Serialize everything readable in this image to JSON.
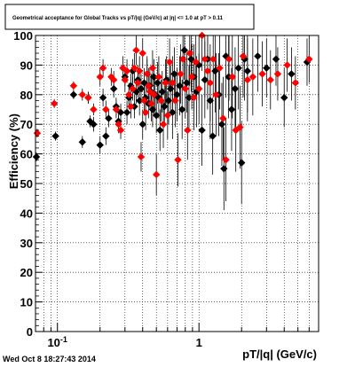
{
  "page": {
    "title": "Geometrical acceptance for Global Tracks vs pT/|q| (GeV/c) at |η| <= 1.0 at pT > 0.11",
    "footer": "Wed Oct  8 18:27:43 2014"
  },
  "chart_data": {
    "type": "scatter",
    "title": "Geometrical acceptance for Global Tracks vs pT/|q| (GeV/c) at |η| <= 1.0 at pT > 0.11",
    "xlabel": "pT/|q| (GeV/c)",
    "ylabel": "Efficiency (%)",
    "x_scale": "log",
    "xlim": [
      0.07,
      7.0
    ],
    "ylim": [
      0,
      100
    ],
    "x_ticks": [
      {
        "value": 0.1,
        "label": "10^-1"
      },
      {
        "value": 1,
        "label": "1"
      }
    ],
    "y_ticks": [
      0,
      10,
      20,
      30,
      40,
      50,
      60,
      70,
      80,
      90,
      100
    ],
    "grid": true,
    "marker": "diamond",
    "series": [
      {
        "color": "#000000",
        "points": [
          {
            "x": 0.071,
            "y": 59,
            "e": 1.5
          },
          {
            "x": 0.097,
            "y": 66,
            "e": 1.5
          },
          {
            "x": 0.13,
            "y": 80,
            "e": 1.5
          },
          {
            "x": 0.15,
            "y": 64,
            "e": 2
          },
          {
            "x": 0.165,
            "y": 79,
            "e": 2
          },
          {
            "x": 0.17,
            "y": 71,
            "e": 2
          },
          {
            "x": 0.18,
            "y": 70,
            "e": 2.5
          },
          {
            "x": 0.2,
            "y": 63,
            "e": 3
          },
          {
            "x": 0.21,
            "y": 79,
            "e": 3
          },
          {
            "x": 0.22,
            "y": 66,
            "e": 3
          },
          {
            "x": 0.23,
            "y": 72,
            "e": 3
          },
          {
            "x": 0.25,
            "y": 82,
            "e": 3
          },
          {
            "x": 0.26,
            "y": 76,
            "e": 3
          },
          {
            "x": 0.27,
            "y": 71,
            "e": 3
          },
          {
            "x": 0.28,
            "y": 74,
            "e": 3
          },
          {
            "x": 0.3,
            "y": 86,
            "e": 3
          },
          {
            "x": 0.31,
            "y": 74,
            "e": 4
          },
          {
            "x": 0.32,
            "y": 79,
            "e": 4
          },
          {
            "x": 0.33,
            "y": 83,
            "e": 4
          },
          {
            "x": 0.34,
            "y": 88,
            "e": 4
          },
          {
            "x": 0.35,
            "y": 76,
            "e": 4
          },
          {
            "x": 0.36,
            "y": 81,
            "e": 4
          },
          {
            "x": 0.37,
            "y": 85,
            "e": 5
          },
          {
            "x": 0.38,
            "y": 78,
            "e": 5
          },
          {
            "x": 0.39,
            "y": 82,
            "e": 5
          },
          {
            "x": 0.4,
            "y": 70,
            "e": 5
          },
          {
            "x": 0.41,
            "y": 84,
            "e": 5
          },
          {
            "x": 0.42,
            "y": 79,
            "e": 5
          },
          {
            "x": 0.43,
            "y": 87,
            "e": 5
          },
          {
            "x": 0.44,
            "y": 77,
            "e": 5
          },
          {
            "x": 0.45,
            "y": 83,
            "e": 6
          },
          {
            "x": 0.46,
            "y": 81,
            "e": 6
          },
          {
            "x": 0.47,
            "y": 75,
            "e": 6
          },
          {
            "x": 0.48,
            "y": 86,
            "e": 6
          },
          {
            "x": 0.49,
            "y": 80,
            "e": 6
          },
          {
            "x": 0.5,
            "y": 73,
            "e": 6
          },
          {
            "x": 0.51,
            "y": 84,
            "e": 7
          },
          {
            "x": 0.52,
            "y": 79,
            "e": 7
          },
          {
            "x": 0.53,
            "y": 68,
            "e": 7
          },
          {
            "x": 0.55,
            "y": 81,
            "e": 7
          },
          {
            "x": 0.57,
            "y": 76,
            "e": 7
          },
          {
            "x": 0.59,
            "y": 85,
            "e": 8
          },
          {
            "x": 0.61,
            "y": 78,
            "e": 8
          },
          {
            "x": 0.63,
            "y": 82,
            "e": 8
          },
          {
            "x": 0.65,
            "y": 74,
            "e": 9
          },
          {
            "x": 0.67,
            "y": 87,
            "e": 9
          },
          {
            "x": 0.7,
            "y": 80,
            "e": 9
          },
          {
            "x": 0.73,
            "y": 83,
            "e": 10
          },
          {
            "x": 0.76,
            "y": 75,
            "e": 10
          },
          {
            "x": 0.79,
            "y": 95,
            "e": 10
          },
          {
            "x": 0.82,
            "y": 84,
            "e": 10
          },
          {
            "x": 0.85,
            "y": 79,
            "e": 11
          },
          {
            "x": 0.88,
            "y": 92,
            "e": 11
          },
          {
            "x": 0.92,
            "y": 86,
            "e": 11
          },
          {
            "x": 0.96,
            "y": 81,
            "e": 12
          },
          {
            "x": 1.0,
            "y": 90,
            "e": 12
          },
          {
            "x": 1.05,
            "y": 68,
            "e": 12
          },
          {
            "x": 1.1,
            "y": 85,
            "e": 13
          },
          {
            "x": 1.15,
            "y": 92,
            "e": 13
          },
          {
            "x": 1.2,
            "y": 78,
            "e": 13
          },
          {
            "x": 1.25,
            "y": 66,
            "e": 13
          },
          {
            "x": 1.3,
            "y": 88,
            "e": 14
          },
          {
            "x": 1.38,
            "y": 80,
            "e": 14
          },
          {
            "x": 1.45,
            "y": 70,
            "e": 14
          },
          {
            "x": 1.5,
            "y": 55,
            "e": 14
          },
          {
            "x": 1.55,
            "y": 93,
            "e": 14
          },
          {
            "x": 1.62,
            "y": 86,
            "e": 14
          },
          {
            "x": 1.7,
            "y": 75,
            "e": 14
          },
          {
            "x": 1.8,
            "y": 82,
            "e": 14
          },
          {
            "x": 1.9,
            "y": 89,
            "e": 14
          },
          {
            "x": 2.0,
            "y": 57,
            "e": 14
          },
          {
            "x": 2.1,
            "y": 92,
            "e": 14
          },
          {
            "x": 2.2,
            "y": 88,
            "e": 14
          },
          {
            "x": 2.6,
            "y": 93,
            "e": 12
          },
          {
            "x": 3.0,
            "y": 89,
            "e": 10
          },
          {
            "x": 3.5,
            "y": 92,
            "e": 9
          },
          {
            "x": 4.0,
            "y": 79,
            "e": 10
          },
          {
            "x": 4.5,
            "y": 87,
            "e": 9
          },
          {
            "x": 5.8,
            "y": 91,
            "e": 8
          }
        ]
      },
      {
        "color": "#ff0000",
        "points": [
          {
            "x": 0.072,
            "y": 67,
            "e": 1.5
          },
          {
            "x": 0.095,
            "y": 77,
            "e": 1.5
          },
          {
            "x": 0.13,
            "y": 83,
            "e": 1.5
          },
          {
            "x": 0.15,
            "y": 80,
            "e": 2
          },
          {
            "x": 0.165,
            "y": 79,
            "e": 2
          },
          {
            "x": 0.18,
            "y": 75,
            "e": 2
          },
          {
            "x": 0.2,
            "y": 86,
            "e": 3
          },
          {
            "x": 0.21,
            "y": 89,
            "e": 3
          },
          {
            "x": 0.22,
            "y": 75,
            "e": 3
          },
          {
            "x": 0.24,
            "y": 86,
            "e": 3
          },
          {
            "x": 0.25,
            "y": 85,
            "e": 3
          },
          {
            "x": 0.26,
            "y": 75,
            "e": 3
          },
          {
            "x": 0.27,
            "y": 70,
            "e": 3
          },
          {
            "x": 0.28,
            "y": 68,
            "e": 3
          },
          {
            "x": 0.29,
            "y": 89,
            "e": 4
          },
          {
            "x": 0.3,
            "y": 85,
            "e": 4
          },
          {
            "x": 0.31,
            "y": 88,
            "e": 4
          },
          {
            "x": 0.32,
            "y": 80,
            "e": 4
          },
          {
            "x": 0.33,
            "y": 76,
            "e": 4
          },
          {
            "x": 0.34,
            "y": 82,
            "e": 4
          },
          {
            "x": 0.35,
            "y": 89,
            "e": 5
          },
          {
            "x": 0.36,
            "y": 95,
            "e": 5
          },
          {
            "x": 0.37,
            "y": 84,
            "e": 5
          },
          {
            "x": 0.38,
            "y": 88,
            "e": 5
          },
          {
            "x": 0.39,
            "y": 59,
            "e": 5
          },
          {
            "x": 0.4,
            "y": 94,
            "e": 5
          },
          {
            "x": 0.41,
            "y": 78,
            "e": 5
          },
          {
            "x": 0.42,
            "y": 74,
            "e": 6
          },
          {
            "x": 0.43,
            "y": 87,
            "e": 6
          },
          {
            "x": 0.44,
            "y": 83,
            "e": 6
          },
          {
            "x": 0.45,
            "y": 81,
            "e": 6
          },
          {
            "x": 0.46,
            "y": 77,
            "e": 6
          },
          {
            "x": 0.47,
            "y": 89,
            "e": 6
          },
          {
            "x": 0.48,
            "y": 80,
            "e": 7
          },
          {
            "x": 0.5,
            "y": 53,
            "e": 7
          },
          {
            "x": 0.52,
            "y": 86,
            "e": 7
          },
          {
            "x": 0.54,
            "y": 78,
            "e": 7
          },
          {
            "x": 0.56,
            "y": 70,
            "e": 8
          },
          {
            "x": 0.58,
            "y": 84,
            "e": 8
          },
          {
            "x": 0.6,
            "y": 73,
            "e": 8
          },
          {
            "x": 0.62,
            "y": 91,
            "e": 8
          },
          {
            "x": 0.65,
            "y": 84,
            "e": 9
          },
          {
            "x": 0.68,
            "y": 78,
            "e": 9
          },
          {
            "x": 0.71,
            "y": 58,
            "e": 9
          },
          {
            "x": 0.74,
            "y": 87,
            "e": 10
          },
          {
            "x": 0.77,
            "y": 92,
            "e": 10
          },
          {
            "x": 0.8,
            "y": 82,
            "e": 10
          },
          {
            "x": 0.83,
            "y": 68,
            "e": 10
          },
          {
            "x": 0.86,
            "y": 94,
            "e": 11
          },
          {
            "x": 0.89,
            "y": 86,
            "e": 11
          },
          {
            "x": 0.92,
            "y": 79,
            "e": 11
          },
          {
            "x": 0.95,
            "y": 91,
            "e": 12
          },
          {
            "x": 1.0,
            "y": 82,
            "e": 12
          },
          {
            "x": 1.05,
            "y": 100,
            "e": 12
          },
          {
            "x": 1.1,
            "y": 92,
            "e": 13
          },
          {
            "x": 1.15,
            "y": 88,
            "e": 13
          },
          {
            "x": 1.2,
            "y": 84,
            "e": 13
          },
          {
            "x": 1.26,
            "y": 92,
            "e": 13
          },
          {
            "x": 1.32,
            "y": 80,
            "e": 14
          },
          {
            "x": 1.4,
            "y": 89,
            "e": 14
          },
          {
            "x": 1.48,
            "y": 72,
            "e": 14
          },
          {
            "x": 1.55,
            "y": 58,
            "e": 14
          },
          {
            "x": 1.63,
            "y": 92,
            "e": 14
          },
          {
            "x": 1.72,
            "y": 86,
            "e": 14
          },
          {
            "x": 1.82,
            "y": 68,
            "e": 14
          },
          {
            "x": 1.95,
            "y": 69,
            "e": 14
          },
          {
            "x": 2.05,
            "y": 93,
            "e": 14
          },
          {
            "x": 2.2,
            "y": 85,
            "e": 14
          },
          {
            "x": 2.4,
            "y": 86,
            "e": 13
          },
          {
            "x": 2.8,
            "y": 87,
            "e": 11
          },
          {
            "x": 3.2,
            "y": 85,
            "e": 10
          },
          {
            "x": 3.6,
            "y": 87,
            "e": 9
          },
          {
            "x": 4.2,
            "y": 90,
            "e": 9
          },
          {
            "x": 4.8,
            "y": 84,
            "e": 9
          },
          {
            "x": 6.0,
            "y": 92,
            "e": 8
          }
        ]
      }
    ]
  }
}
